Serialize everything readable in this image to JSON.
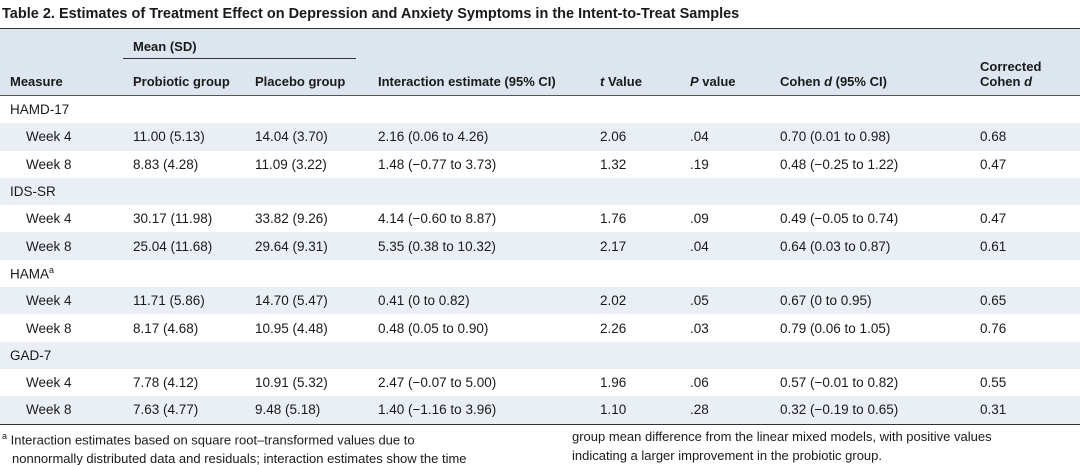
{
  "title": "Table 2. Estimates of Treatment Effect on Depression and Anxiety Symptoms in the Intent-to-Treat Samples",
  "table": {
    "span_header": "Mean (SD)",
    "columns": [
      [
        {
          "text": "Measure"
        }
      ],
      [
        {
          "text": "Probiotic group"
        }
      ],
      [
        {
          "text": "Placebo group"
        }
      ],
      [
        {
          "text": "Interaction estimate (95% CI)"
        }
      ],
      [
        {
          "text": "t",
          "italic": true
        },
        {
          "text": " Value"
        }
      ],
      [
        {
          "text": "P",
          "italic": true
        },
        {
          "text": " value"
        }
      ],
      [
        {
          "text": "Cohen "
        },
        {
          "text": "d",
          "italic": true
        },
        {
          "text": " (95% CI)"
        }
      ],
      [
        {
          "text": "Corrected"
        },
        {
          "text": "Cohen ",
          "br": true
        },
        {
          "text": "d",
          "italic": true
        }
      ]
    ],
    "groups": [
      {
        "label": "HAMD-17",
        "rows": [
          [
            "Week 4",
            "11.00 (5.13)",
            "14.04 (3.70)",
            "2.16 (0.06 to 4.26)",
            "2.06",
            ".04",
            "0.70 (0.01 to 0.98)",
            "0.68"
          ],
          [
            "Week 8",
            "8.83 (4.28)",
            "11.09 (3.22)",
            "1.48 (−0.77 to 3.73)",
            "1.32",
            ".19",
            "0.48 (−0.25 to 1.22)",
            "0.47"
          ]
        ]
      },
      {
        "label": "IDS-SR",
        "rows": [
          [
            "Week 4",
            "30.17 (11.98)",
            "33.82 (9.26)",
            "4.14 (−0.60 to 8.87)",
            "1.76",
            ".09",
            "0.49 (−0.05 to 0.74)",
            "0.47"
          ],
          [
            "Week 8",
            "25.04 (11.68)",
            "29.64 (9.31)",
            "5.35 (0.38 to 10.32)",
            "2.17",
            ".04",
            "0.64 (0.03 to 0.87)",
            "0.61"
          ]
        ]
      },
      {
        "label": "HAMA",
        "note_mark": "a",
        "rows": [
          [
            "Week 4",
            "11.71 (5.86)",
            "14.70 (5.47)",
            "0.41 (0 to 0.82)",
            "2.02",
            ".05",
            "0.67 (0 to 0.95)",
            "0.65"
          ],
          [
            "Week 8",
            "8.17 (4.68)",
            "10.95 (4.48)",
            "0.48 (0.05 to 0.90)",
            "2.26",
            ".03",
            "0.79 (0.06 to 1.05)",
            "0.76"
          ]
        ]
      },
      {
        "label": "GAD-7",
        "rows": [
          [
            "Week 4",
            "7.78 (4.12)",
            "10.91 (5.32)",
            "2.47 (−0.07 to 5.00)",
            "1.96",
            ".06",
            "0.57 (−0.01 to 0.82)",
            "0.55"
          ],
          [
            "Week 8",
            "7.63 (4.77)",
            "9.48 (5.18)",
            "1.40 (−1.16 to 3.96)",
            "1.10",
            ".28",
            "0.32 (−0.19 to 0.65)",
            "0.31"
          ]
        ]
      }
    ]
  },
  "footnote": {
    "mark": "a",
    "text": "Interaction estimates based on square root–transformed values due to nonnormally distributed data and residuals; interaction estimates show the time group mean difference from the linear mixed models, with positive values indicating a larger improvement in the probiotic group."
  }
}
